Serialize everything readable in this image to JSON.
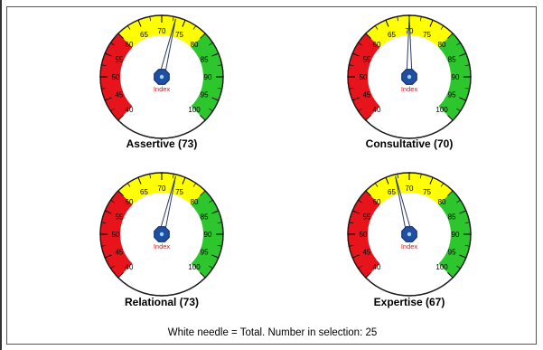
{
  "chart_data": [
    {
      "type": "gauge",
      "title": "Assertive (73)",
      "value": 73,
      "needle_value": 73
    },
    {
      "type": "gauge",
      "title": "Consultative (70)",
      "value": 70,
      "needle_value": 70
    },
    {
      "type": "gauge",
      "title": "Relational (73)",
      "value": 73,
      "needle_value": 73
    },
    {
      "type": "gauge",
      "title": "Expertise (67)",
      "value": 67,
      "needle_value": 67
    }
  ],
  "gauge_scale": {
    "min": 40,
    "max": 100,
    "tick_labels": [
      "40",
      "45",
      "50",
      "55",
      "60",
      "65",
      "70",
      "75",
      "80",
      "85",
      "90",
      "95",
      "100"
    ],
    "bands": [
      {
        "from": 40,
        "to": 60,
        "color": "#e8141b"
      },
      {
        "from": 60,
        "to": 80,
        "color": "#ffff00"
      },
      {
        "from": 80,
        "to": 100,
        "color": "#2dc62d"
      }
    ],
    "hub_label": "Index",
    "needle_color": "#ffffff",
    "hub_color": "#1f4fa0"
  },
  "caption": "White needle = Total. Number in selection: 25"
}
